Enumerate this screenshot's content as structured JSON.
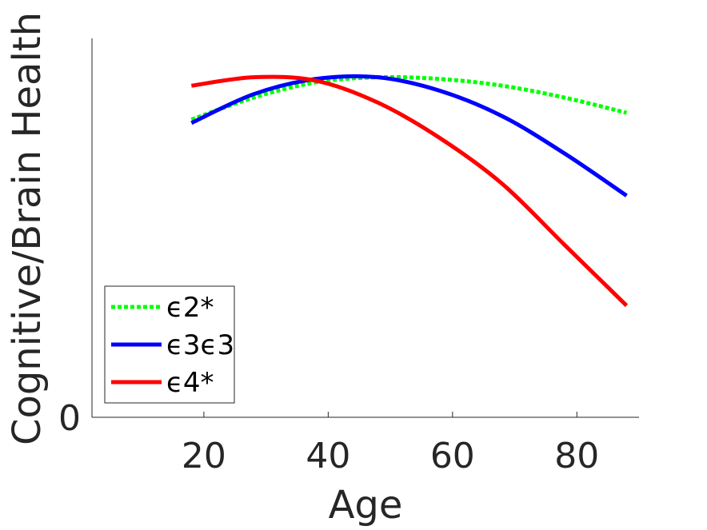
{
  "chart_data": {
    "type": "line",
    "title": "",
    "xlabel": "Age",
    "ylabel": "Cognitive/Brain Health",
    "xlim": [
      2,
      90
    ],
    "ylim": [
      0,
      1.12
    ],
    "xticks": [
      "20",
      "40",
      "60",
      "80"
    ],
    "yticks": [
      "0"
    ],
    "grid": false,
    "legend_position": "bottom-left",
    "x": [
      18,
      28,
      38,
      48,
      58,
      68,
      78,
      88
    ],
    "series": [
      {
        "name": "ϵ2*",
        "color": "#00ff00",
        "style": "dotted",
        "values": [
          0.88,
          0.945,
          0.99,
          1.005,
          1.0,
          0.98,
          0.945,
          0.9
        ]
      },
      {
        "name": "ϵ3ϵ3",
        "color": "#0000ff",
        "style": "solid",
        "values": [
          0.87,
          0.955,
          1.0,
          1.005,
          0.965,
          0.89,
          0.78,
          0.655
        ]
      },
      {
        "name": "ϵ4*",
        "color": "#ff0000",
        "style": "solid",
        "values": [
          0.98,
          1.005,
          0.995,
          0.93,
          0.825,
          0.69,
          0.51,
          0.33
        ]
      }
    ]
  }
}
